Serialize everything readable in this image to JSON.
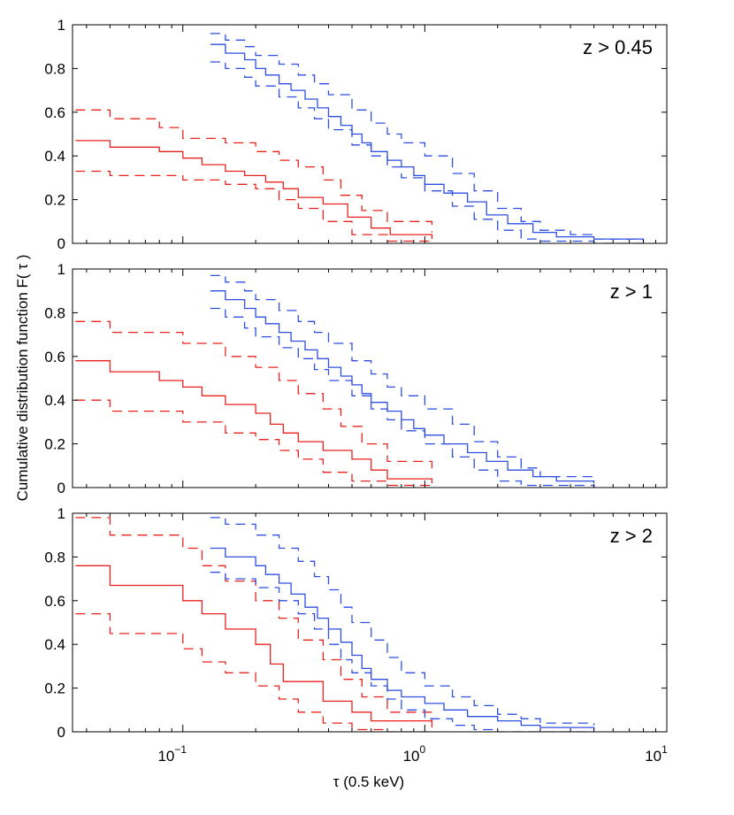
{
  "chart_data": {
    "type": "line",
    "xscale": "log",
    "xlim": [
      0.035,
      10
    ],
    "ylim": [
      0,
      1
    ],
    "xlabel": "τ (0.5 keV)",
    "ylabel": "Cumulative distribution function F( τ )",
    "yticks": [
      "0",
      "0.2",
      "0.4",
      "0.6",
      "0.8",
      "1"
    ],
    "xticks": [
      {
        "value": 0.1,
        "base": "10",
        "exp": "−1"
      },
      {
        "value": 1,
        "base": "10",
        "exp": "0"
      },
      {
        "value": 10,
        "base": "10",
        "exp": "1"
      }
    ],
    "series_style": [
      {
        "name": "red",
        "color": "#e8231f"
      },
      {
        "name": "blue",
        "color": "#2f4fe0"
      }
    ],
    "panels": [
      {
        "label": "z > 0.45",
        "series": [
          {
            "name": "red",
            "line": "solid",
            "x": [
              0.036,
              0.05,
              0.08,
              0.1,
              0.12,
              0.15,
              0.18,
              0.22,
              0.26,
              0.3,
              0.38,
              0.48,
              0.6,
              0.72,
              1.07
            ],
            "y": [
              0.47,
              0.44,
              0.42,
              0.39,
              0.36,
              0.33,
              0.31,
              0.28,
              0.25,
              0.21,
              0.18,
              0.12,
              0.07,
              0.04,
              0.02
            ]
          },
          {
            "name": "red",
            "line": "dashed",
            "x": [
              0.036,
              0.05,
              0.08,
              0.1,
              0.15,
              0.2,
              0.25,
              0.3,
              0.38,
              0.45,
              0.55,
              0.7,
              1.07
            ],
            "y": [
              0.61,
              0.57,
              0.53,
              0.48,
              0.46,
              0.42,
              0.38,
              0.35,
              0.29,
              0.22,
              0.15,
              0.1,
              0.05
            ]
          },
          {
            "name": "red",
            "line": "dashed",
            "x": [
              0.036,
              0.05,
              0.1,
              0.15,
              0.2,
              0.25,
              0.3,
              0.38,
              0.5,
              0.7,
              1.07
            ],
            "y": [
              0.33,
              0.31,
              0.29,
              0.27,
              0.25,
              0.2,
              0.16,
              0.1,
              0.04,
              0.01,
              0.0
            ]
          },
          {
            "name": "blue",
            "line": "solid",
            "x": [
              0.13,
              0.15,
              0.18,
              0.2,
              0.22,
              0.25,
              0.28,
              0.32,
              0.36,
              0.4,
              0.45,
              0.5,
              0.55,
              0.6,
              0.7,
              0.8,
              0.9,
              1.0,
              1.2,
              1.5,
              1.8,
              2.2,
              2.8,
              3.5,
              5.0,
              8.0
            ],
            "y": [
              0.91,
              0.87,
              0.84,
              0.8,
              0.77,
              0.73,
              0.7,
              0.66,
              0.62,
              0.58,
              0.54,
              0.5,
              0.46,
              0.42,
              0.38,
              0.35,
              0.31,
              0.27,
              0.23,
              0.19,
              0.13,
              0.09,
              0.05,
              0.03,
              0.02,
              0.01
            ]
          },
          {
            "name": "blue",
            "line": "dashed",
            "x": [
              0.13,
              0.15,
              0.18,
              0.2,
              0.25,
              0.3,
              0.35,
              0.4,
              0.5,
              0.6,
              0.7,
              0.8,
              1.0,
              1.3,
              1.6,
              2.0,
              2.5,
              3.0,
              4.0,
              5.0,
              8.0
            ],
            "y": [
              0.96,
              0.93,
              0.9,
              0.86,
              0.82,
              0.77,
              0.73,
              0.68,
              0.61,
              0.55,
              0.5,
              0.46,
              0.4,
              0.32,
              0.24,
              0.16,
              0.1,
              0.06,
              0.04,
              0.02,
              0.01
            ]
          },
          {
            "name": "blue",
            "line": "dashed",
            "x": [
              0.13,
              0.15,
              0.18,
              0.2,
              0.25,
              0.3,
              0.35,
              0.4,
              0.5,
              0.6,
              0.7,
              0.8,
              1.0,
              1.3,
              1.6,
              2.0,
              2.5,
              3.0,
              5.0,
              8.0
            ],
            "y": [
              0.83,
              0.8,
              0.76,
              0.72,
              0.67,
              0.62,
              0.57,
              0.52,
              0.45,
              0.4,
              0.35,
              0.3,
              0.24,
              0.17,
              0.11,
              0.06,
              0.02,
              0.01,
              0.0,
              0.0
            ]
          }
        ]
      },
      {
        "label": "z > 1",
        "series": [
          {
            "name": "red",
            "line": "solid",
            "x": [
              0.036,
              0.05,
              0.08,
              0.1,
              0.12,
              0.15,
              0.2,
              0.23,
              0.26,
              0.3,
              0.38,
              0.5,
              0.6,
              0.7,
              1.07
            ],
            "y": [
              0.58,
              0.53,
              0.49,
              0.46,
              0.42,
              0.38,
              0.34,
              0.29,
              0.25,
              0.21,
              0.17,
              0.13,
              0.08,
              0.04,
              0.02
            ]
          },
          {
            "name": "red",
            "line": "dashed",
            "x": [
              0.036,
              0.05,
              0.1,
              0.15,
              0.2,
              0.25,
              0.3,
              0.38,
              0.45,
              0.55,
              0.7,
              1.07
            ],
            "y": [
              0.76,
              0.71,
              0.66,
              0.6,
              0.55,
              0.49,
              0.43,
              0.36,
              0.28,
              0.2,
              0.12,
              0.06
            ]
          },
          {
            "name": "red",
            "line": "dashed",
            "x": [
              0.036,
              0.05,
              0.1,
              0.15,
              0.2,
              0.25,
              0.3,
              0.38,
              0.5,
              0.7,
              1.07
            ],
            "y": [
              0.4,
              0.35,
              0.3,
              0.25,
              0.22,
              0.17,
              0.13,
              0.07,
              0.03,
              0.01,
              0.0
            ]
          },
          {
            "name": "blue",
            "line": "solid",
            "x": [
              0.13,
              0.15,
              0.18,
              0.2,
              0.22,
              0.25,
              0.28,
              0.32,
              0.36,
              0.4,
              0.45,
              0.5,
              0.55,
              0.6,
              0.7,
              0.8,
              0.9,
              1.0,
              1.2,
              1.5,
              1.8,
              2.2,
              2.8,
              3.5,
              5.0
            ],
            "y": [
              0.9,
              0.86,
              0.82,
              0.78,
              0.75,
              0.71,
              0.67,
              0.63,
              0.59,
              0.55,
              0.51,
              0.47,
              0.43,
              0.39,
              0.35,
              0.31,
              0.27,
              0.24,
              0.2,
              0.16,
              0.12,
              0.08,
              0.05,
              0.03,
              0.02
            ]
          },
          {
            "name": "blue",
            "line": "dashed",
            "x": [
              0.13,
              0.15,
              0.18,
              0.2,
              0.25,
              0.3,
              0.35,
              0.4,
              0.5,
              0.6,
              0.7,
              0.8,
              1.0,
              1.3,
              1.6,
              2.0,
              2.5,
              3.0,
              5.0
            ],
            "y": [
              0.97,
              0.94,
              0.9,
              0.86,
              0.81,
              0.76,
              0.71,
              0.66,
              0.58,
              0.52,
              0.46,
              0.42,
              0.36,
              0.29,
              0.21,
              0.14,
              0.09,
              0.05,
              0.03
            ]
          },
          {
            "name": "blue",
            "line": "dashed",
            "x": [
              0.13,
              0.15,
              0.18,
              0.2,
              0.25,
              0.3,
              0.35,
              0.4,
              0.5,
              0.6,
              0.7,
              0.8,
              1.0,
              1.3,
              1.6,
              2.0,
              2.5,
              5.0
            ],
            "y": [
              0.82,
              0.78,
              0.73,
              0.69,
              0.64,
              0.59,
              0.54,
              0.49,
              0.42,
              0.36,
              0.31,
              0.26,
              0.2,
              0.14,
              0.08,
              0.03,
              0.01,
              0.0
            ]
          }
        ]
      },
      {
        "label": "z > 2",
        "series": [
          {
            "name": "red",
            "line": "solid",
            "x": [
              0.036,
              0.05,
              0.1,
              0.12,
              0.15,
              0.2,
              0.23,
              0.26,
              0.38,
              0.5,
              0.6,
              1.07
            ],
            "y": [
              0.76,
              0.67,
              0.6,
              0.54,
              0.47,
              0.4,
              0.31,
              0.23,
              0.14,
              0.09,
              0.05,
              0.02
            ]
          },
          {
            "name": "red",
            "line": "dashed",
            "x": [
              0.036,
              0.05,
              0.1,
              0.12,
              0.15,
              0.2,
              0.25,
              0.3,
              0.38,
              0.45,
              0.55,
              0.7,
              1.07
            ],
            "y": [
              0.98,
              0.9,
              0.84,
              0.76,
              0.69,
              0.6,
              0.52,
              0.42,
              0.33,
              0.24,
              0.16,
              0.09,
              0.04
            ]
          },
          {
            "name": "red",
            "line": "dashed",
            "x": [
              0.036,
              0.05,
              0.1,
              0.12,
              0.15,
              0.2,
              0.25,
              0.3,
              0.38,
              0.5,
              0.7,
              1.07
            ],
            "y": [
              0.54,
              0.45,
              0.38,
              0.32,
              0.27,
              0.21,
              0.15,
              0.09,
              0.04,
              0.01,
              0.0,
              0.0
            ]
          },
          {
            "name": "blue",
            "line": "solid",
            "x": [
              0.13,
              0.15,
              0.2,
              0.22,
              0.25,
              0.28,
              0.32,
              0.36,
              0.4,
              0.45,
              0.5,
              0.55,
              0.6,
              0.7,
              0.8,
              1.0,
              1.2,
              1.5,
              2.0,
              2.5,
              3.0,
              5.0
            ],
            "y": [
              0.84,
              0.8,
              0.76,
              0.72,
              0.68,
              0.63,
              0.57,
              0.52,
              0.47,
              0.41,
              0.35,
              0.29,
              0.24,
              0.19,
              0.16,
              0.13,
              0.1,
              0.07,
              0.05,
              0.03,
              0.02,
              0.01
            ]
          },
          {
            "name": "blue",
            "line": "dashed",
            "x": [
              0.13,
              0.15,
              0.2,
              0.25,
              0.3,
              0.35,
              0.4,
              0.45,
              0.5,
              0.6,
              0.7,
              0.8,
              1.0,
              1.3,
              1.6,
              2.0,
              2.5,
              3.0,
              5.0
            ],
            "y": [
              0.98,
              0.95,
              0.9,
              0.84,
              0.78,
              0.71,
              0.65,
              0.57,
              0.5,
              0.42,
              0.34,
              0.27,
              0.21,
              0.16,
              0.12,
              0.08,
              0.06,
              0.04,
              0.03
            ]
          },
          {
            "name": "blue",
            "line": "dashed",
            "x": [
              0.13,
              0.15,
              0.2,
              0.25,
              0.3,
              0.35,
              0.4,
              0.45,
              0.5,
              0.6,
              0.7,
              0.8,
              1.0,
              1.3,
              1.6,
              2.0,
              3.0,
              5.0
            ],
            "y": [
              0.73,
              0.7,
              0.66,
              0.6,
              0.54,
              0.47,
              0.4,
              0.33,
              0.27,
              0.21,
              0.15,
              0.1,
              0.06,
              0.03,
              0.01,
              0.0,
              0.0,
              0.0
            ]
          }
        ]
      }
    ]
  }
}
